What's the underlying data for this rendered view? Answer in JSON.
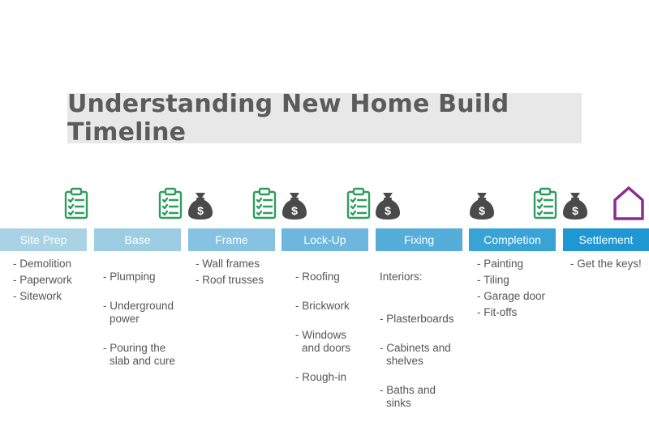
{
  "title": "Understanding New Home Build Timeline",
  "colors": {
    "title_bg": "#e8e8e8",
    "clipboard": "#2e9e5f",
    "money_bag": "#4a4a4a",
    "house": "#8b2c8f",
    "text": "#555555"
  },
  "stages": [
    {
      "label": "Site Prep",
      "color": "#a9d3e4",
      "items": [
        "- Demolition",
        "- Paperwork",
        "- Sitework"
      ]
    },
    {
      "label": "Base",
      "color": "#9dcde3",
      "items": [
        "- Plumping",
        "- Underground\npower",
        "- Pouring the\nslab and cure"
      ]
    },
    {
      "label": "Frame",
      "color": "#86c2e1",
      "items": [
        "- Wall frames",
        "- Roof trusses"
      ]
    },
    {
      "label": "Lock-Up",
      "color": "#6db7de",
      "items": [
        "- Roofing",
        "- Brickwork",
        "- Windows\nand doors",
        "- Rough-in"
      ]
    },
    {
      "label": "Fixing",
      "color": "#55add9",
      "intro": "Interiors:",
      "items": [
        "- Plasterboards",
        "- Cabinets and\nshelves",
        "- Baths and\nsinks"
      ]
    },
    {
      "label": "Completion",
      "color": "#39a3d6",
      "items": [
        "- Painting",
        "- Tiling",
        "- Garage door",
        "- Fit-offs"
      ]
    },
    {
      "label": "Settlement",
      "color": "#1f97d3",
      "items": [
        "- Get the keys!"
      ]
    }
  ],
  "icons": [
    {
      "name": "clipboard-check-icon"
    },
    {
      "name": "money-bag-icon",
      "symbol": "$"
    },
    {
      "name": "house-icon"
    }
  ]
}
